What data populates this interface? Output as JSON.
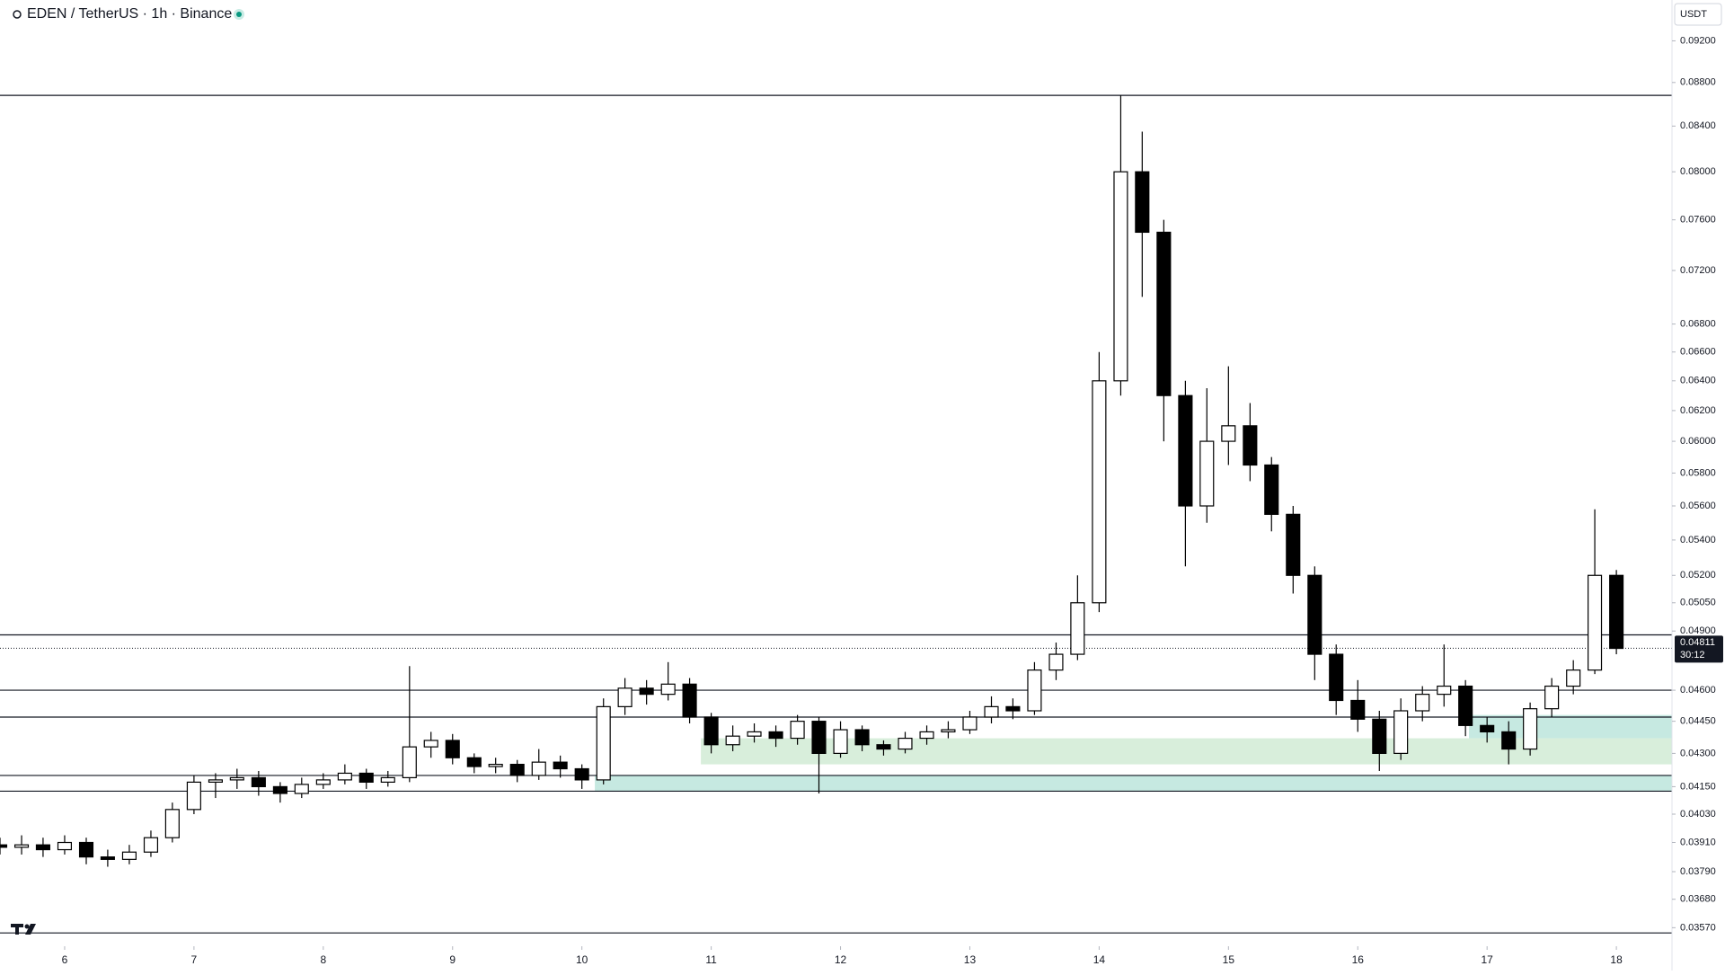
{
  "chart_data": {
    "type": "candlestick",
    "title": "EDEN / TetherUS · 1h · Binance",
    "currency": "USDT",
    "log_scale": true,
    "up_color": "#ffffff",
    "down_color": "#000000",
    "edge_color": "#000000",
    "x": [
      5.5,
      5.667,
      5.833,
      6,
      6.167,
      6.333,
      6.5,
      6.667,
      6.833,
      7,
      7.167,
      7.333,
      7.5,
      7.667,
      7.833,
      8,
      8.167,
      8.333,
      8.5,
      8.667,
      8.833,
      9,
      9.167,
      9.333,
      9.5,
      9.667,
      9.833,
      10,
      10.167,
      10.333,
      10.5,
      10.667,
      10.833,
      11,
      11.167,
      11.333,
      11.5,
      11.667,
      11.833,
      12,
      12.167,
      12.333,
      12.5,
      12.667,
      12.833,
      13,
      13.167,
      13.333,
      13.5,
      13.667,
      13.833,
      14,
      14.167,
      14.333,
      14.5,
      14.667,
      14.833,
      15,
      15.167,
      15.333,
      15.5,
      15.667,
      15.833,
      16,
      16.167,
      16.333,
      16.5,
      16.667,
      16.833,
      17,
      17.167,
      17.333,
      17.5,
      17.667,
      17.833,
      18
    ],
    "open": [
      0.039,
      0.0389,
      0.039,
      0.0388,
      0.0391,
      0.0385,
      0.0384,
      0.0387,
      0.0393,
      0.0405,
      0.0417,
      0.0418,
      0.0419,
      0.0415,
      0.0412,
      0.0416,
      0.0418,
      0.0421,
      0.0417,
      0.0419,
      0.0433,
      0.0436,
      0.0428,
      0.0424,
      0.0425,
      0.042,
      0.0426,
      0.0423,
      0.0418,
      0.0452,
      0.0461,
      0.0458,
      0.0463,
      0.0447,
      0.0434,
      0.0438,
      0.044,
      0.0437,
      0.0445,
      0.043,
      0.0441,
      0.0434,
      0.0432,
      0.0437,
      0.044,
      0.0441,
      0.0447,
      0.0452,
      0.045,
      0.047,
      0.0478,
      0.0505,
      0.064,
      0.08,
      0.075,
      0.063,
      0.056,
      0.06,
      0.061,
      0.0585,
      0.0555,
      0.052,
      0.0478,
      0.0455,
      0.0446,
      0.043,
      0.045,
      0.0458,
      0.0462,
      0.0443,
      0.044,
      0.0432,
      0.0451,
      0.0462,
      0.047,
      0.052
    ],
    "high": [
      0.0393,
      0.0394,
      0.0393,
      0.0394,
      0.0393,
      0.0388,
      0.039,
      0.0396,
      0.0408,
      0.042,
      0.0421,
      0.0423,
      0.0422,
      0.0417,
      0.0419,
      0.0421,
      0.0425,
      0.0423,
      0.0422,
      0.0472,
      0.044,
      0.0439,
      0.043,
      0.0428,
      0.0427,
      0.0432,
      0.0429,
      0.0425,
      0.0456,
      0.0466,
      0.0465,
      0.0474,
      0.0466,
      0.0449,
      0.0443,
      0.0444,
      0.0443,
      0.0448,
      0.0447,
      0.0445,
      0.0443,
      0.0436,
      0.044,
      0.0443,
      0.0445,
      0.045,
      0.0457,
      0.0456,
      0.0474,
      0.0484,
      0.052,
      0.066,
      0.0868,
      0.0835,
      0.076,
      0.064,
      0.0635,
      0.065,
      0.0625,
      0.059,
      0.056,
      0.0525,
      0.0483,
      0.0465,
      0.045,
      0.0456,
      0.0462,
      0.0483,
      0.0465,
      0.0447,
      0.0445,
      0.0454,
      0.0466,
      0.0475,
      0.0558,
      0.0523
    ],
    "low": [
      0.0386,
      0.0386,
      0.0385,
      0.0386,
      0.0382,
      0.0381,
      0.0382,
      0.0385,
      0.0391,
      0.0403,
      0.041,
      0.0414,
      0.0411,
      0.0408,
      0.041,
      0.0414,
      0.0416,
      0.0414,
      0.0415,
      0.0417,
      0.0428,
      0.0425,
      0.0421,
      0.0421,
      0.0417,
      0.0418,
      0.0419,
      0.0414,
      0.0416,
      0.0448,
      0.0453,
      0.0455,
      0.0444,
      0.043,
      0.0431,
      0.0435,
      0.0433,
      0.0434,
      0.0412,
      0.0428,
      0.0431,
      0.0429,
      0.043,
      0.0434,
      0.0437,
      0.0439,
      0.0444,
      0.0446,
      0.0448,
      0.0465,
      0.0475,
      0.05,
      0.063,
      0.07,
      0.06,
      0.0525,
      0.055,
      0.0585,
      0.0575,
      0.0545,
      0.051,
      0.0465,
      0.0448,
      0.044,
      0.0422,
      0.0427,
      0.0445,
      0.0452,
      0.0438,
      0.0435,
      0.0425,
      0.0429,
      0.0447,
      0.0458,
      0.0468,
      0.0478
    ],
    "close": [
      0.0389,
      0.039,
      0.0388,
      0.0391,
      0.0385,
      0.0384,
      0.0387,
      0.0393,
      0.0405,
      0.0417,
      0.0418,
      0.0419,
      0.0415,
      0.0412,
      0.0416,
      0.0418,
      0.0421,
      0.0417,
      0.0419,
      0.0433,
      0.0436,
      0.0428,
      0.0424,
      0.0425,
      0.042,
      0.0426,
      0.0423,
      0.0418,
      0.0452,
      0.0461,
      0.0458,
      0.0463,
      0.0447,
      0.0434,
      0.0438,
      0.044,
      0.0437,
      0.0445,
      0.043,
      0.0441,
      0.0434,
      0.0432,
      0.0437,
      0.044,
      0.0441,
      0.0447,
      0.0452,
      0.045,
      0.047,
      0.0478,
      0.0505,
      0.064,
      0.08,
      0.075,
      0.063,
      0.056,
      0.06,
      0.061,
      0.0585,
      0.0555,
      0.052,
      0.0478,
      0.0455,
      0.0446,
      0.043,
      0.045,
      0.0458,
      0.0462,
      0.0443,
      0.044,
      0.0432,
      0.0451,
      0.0462,
      0.047,
      0.052,
      0.0481
    ],
    "xlim": [
      5.5,
      18.43
    ],
    "xticks": [
      6,
      7,
      8,
      9,
      10,
      11,
      12,
      13,
      14,
      15,
      16,
      17,
      18
    ],
    "ylim": [
      0.035,
      0.0961
    ],
    "yticks": [
      {
        "value": 0.092,
        "label": "0.09200"
      },
      {
        "value": 0.088,
        "label": "0.08800"
      },
      {
        "value": 0.084,
        "label": "0.08400"
      },
      {
        "value": 0.08,
        "label": "0.08000"
      },
      {
        "value": 0.076,
        "label": "0.07600"
      },
      {
        "value": 0.072,
        "label": "0.07200"
      },
      {
        "value": 0.068,
        "label": "0.06800"
      },
      {
        "value": 0.066,
        "label": "0.06600"
      },
      {
        "value": 0.064,
        "label": "0.06400"
      },
      {
        "value": 0.062,
        "label": "0.06200"
      },
      {
        "value": 0.06,
        "label": "0.06000"
      },
      {
        "value": 0.058,
        "label": "0.05800"
      },
      {
        "value": 0.056,
        "label": "0.05600"
      },
      {
        "value": 0.054,
        "label": "0.05400"
      },
      {
        "value": 0.052,
        "label": "0.05200"
      },
      {
        "value": 0.0505,
        "label": "0.05050"
      },
      {
        "value": 0.049,
        "label": "0.04900"
      },
      {
        "value": 0.046,
        "label": "0.04600"
      },
      {
        "value": 0.0445,
        "label": "0.04450"
      },
      {
        "value": 0.043,
        "label": "0.04300"
      },
      {
        "value": 0.0415,
        "label": "0.04150"
      },
      {
        "value": 0.0403,
        "label": "0.04030"
      },
      {
        "value": 0.0391,
        "label": "0.03910"
      },
      {
        "value": 0.0379,
        "label": "0.03790"
      },
      {
        "value": 0.0368,
        "label": "0.03680"
      },
      {
        "value": 0.0357,
        "label": "0.03570"
      }
    ],
    "hlines": [
      0.0868,
      0.0488,
      0.046,
      0.0447,
      0.042,
      0.0413,
      0.0355
    ],
    "zones": [
      {
        "x0": 10.92,
        "ymin": 0.0425,
        "ymax": 0.0437,
        "color": "#d8eedb"
      },
      {
        "x0": 10.1,
        "ymin": 0.0413,
        "ymax": 0.042,
        "color": "#c6e9e1"
      },
      {
        "x0": 16.86,
        "ymin": 0.0437,
        "ymax": 0.0448,
        "color": "#c6e9e1"
      }
    ],
    "last_price": {
      "value": 0.04811,
      "label": "0.04811"
    },
    "countdown": "30:12"
  }
}
